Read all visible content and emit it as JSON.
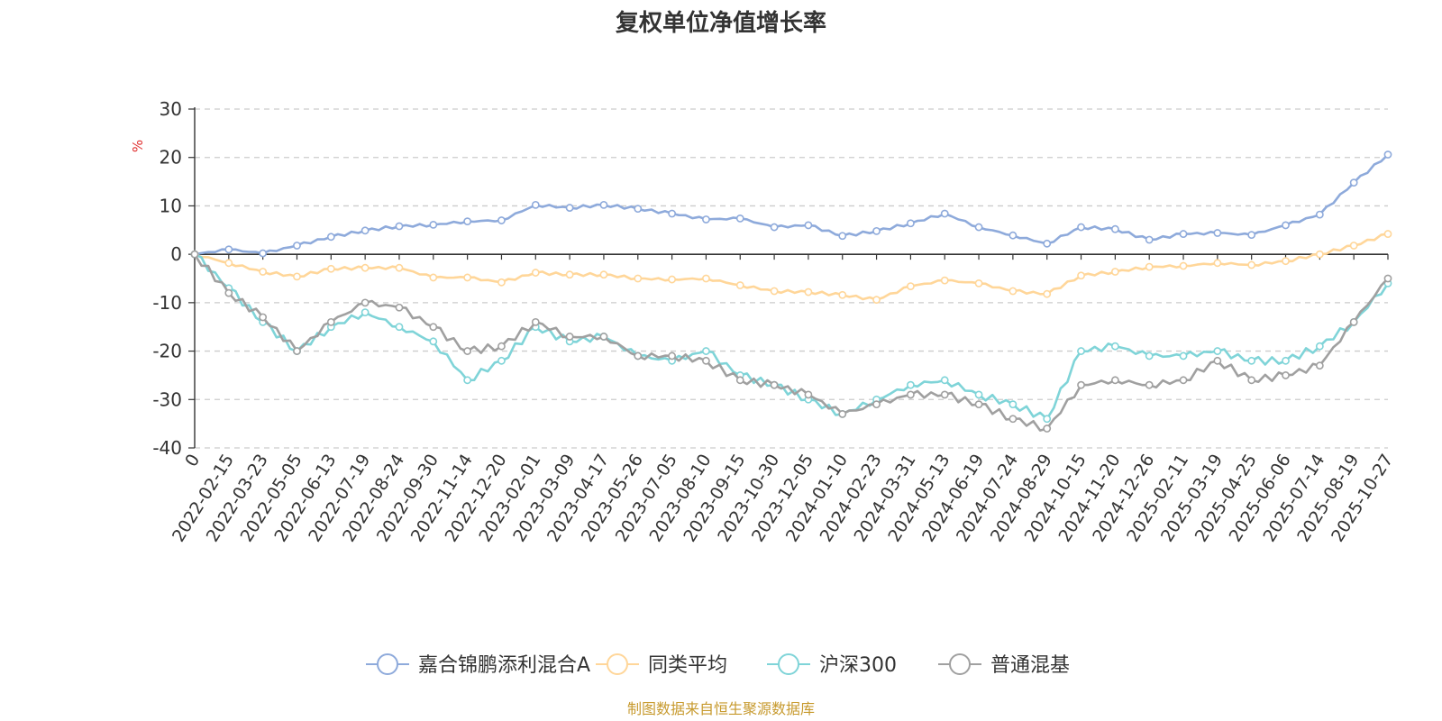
{
  "chart_data": {
    "type": "line",
    "title": "复权单位净值增长率",
    "ylabel": "%",
    "ylim": [
      -40,
      30
    ],
    "yticks": [
      "30",
      "20",
      "10",
      "0",
      "-10",
      "-20",
      "-30",
      "-40"
    ],
    "categories": [
      "0",
      "2022-02-15",
      "2022-03-23",
      "2022-05-05",
      "2022-06-13",
      "2022-07-19",
      "2022-08-24",
      "2022-09-30",
      "2022-11-14",
      "2022-12-20",
      "2023-02-01",
      "2023-03-09",
      "2023-04-17",
      "2023-05-26",
      "2023-07-05",
      "2023-08-10",
      "2023-09-15",
      "2023-10-30",
      "2023-12-05",
      "2024-01-10",
      "2024-02-23",
      "2024-03-31",
      "2024-05-13",
      "2024-06-19",
      "2024-07-24",
      "2024-08-29",
      "2024-10-15",
      "2024-11-20",
      "2024-12-26",
      "2025-02-11",
      "2025-03-19",
      "2025-04-25",
      "2025-06-06",
      "2025-07-14",
      "2025-08-19",
      "2025-10-27"
    ],
    "series": [
      {
        "name": "嘉合锦鹏添利混合A",
        "color": "#8eaadb",
        "values": [
          0,
          1,
          0.2,
          1.8,
          3.6,
          4.9,
          5.8,
          6.1,
          6.8,
          7.0,
          10.2,
          9.6,
          10.2,
          9.4,
          8.4,
          7.2,
          7.4,
          5.6,
          6.0,
          3.8,
          4.8,
          6.4,
          8.4,
          5.6,
          3.9,
          2.2,
          5.6,
          5.2,
          3.0,
          4.2,
          4.4,
          4.0,
          6.0,
          8.2,
          14.8,
          20.6
        ]
      },
      {
        "name": "同类平均",
        "color": "#ffd699",
        "values": [
          0,
          -1.8,
          -3.6,
          -4.6,
          -3.0,
          -2.8,
          -2.8,
          -4.8,
          -4.8,
          -5.8,
          -3.8,
          -4.2,
          -4.2,
          -5.0,
          -5.2,
          -5.0,
          -6.4,
          -7.6,
          -7.8,
          -8.4,
          -9.4,
          -6.6,
          -5.4,
          -6.0,
          -7.6,
          -8.2,
          -4.4,
          -3.6,
          -2.6,
          -2.4,
          -1.8,
          -2.2,
          -1.4,
          0,
          1.8,
          4.2
        ]
      },
      {
        "name": "沪深300",
        "color": "#7fd4d8",
        "values": [
          0,
          -7,
          -14,
          -20,
          -15,
          -12,
          -15,
          -18,
          -26,
          -22,
          -15,
          -18,
          -17,
          -21,
          -22,
          -20,
          -25,
          -27,
          -30,
          -33,
          -30,
          -27,
          -26,
          -29,
          -31,
          -34,
          -20,
          -19,
          -21,
          -21,
          -20,
          -22,
          -22,
          -19,
          -14,
          -6
        ]
      },
      {
        "name": "普通混基",
        "color": "#a0a0a0",
        "values": [
          0,
          -8,
          -13,
          -20,
          -14,
          -10,
          -11,
          -15,
          -20,
          -19,
          -14,
          -17,
          -17,
          -21,
          -21,
          -22,
          -26,
          -27,
          -29,
          -33,
          -31,
          -29,
          -29,
          -31,
          -34,
          -36,
          -27,
          -26,
          -27,
          -26,
          -22,
          -26,
          -25,
          -23,
          -14,
          -5
        ]
      }
    ],
    "legend": [
      "嘉合锦鹏添利混合A",
      "同类平均",
      "沪深300",
      "普通混基"
    ]
  },
  "source_text": "制图数据来自恒生聚源数据库",
  "colors": {
    "axis": "#333333",
    "grid": "#cccccc",
    "unit": "#e03030"
  }
}
